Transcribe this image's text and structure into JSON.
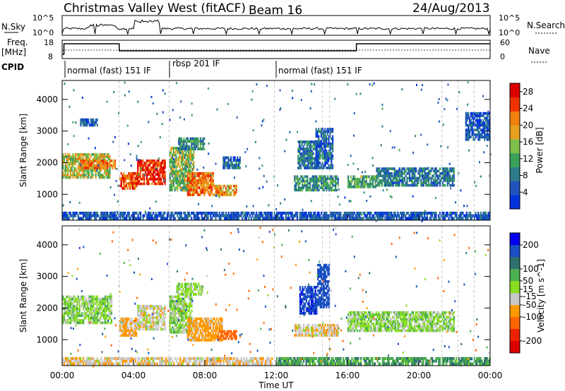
{
  "header": {
    "title": "Christmas Valley West (fitACF)",
    "beam": "Beam 16",
    "date": "24/Aug/2013"
  },
  "strips": {
    "nsky": {
      "label": "N.Sky",
      "ticks": [
        "10^5",
        "10^0"
      ],
      "right_label": "N.Search"
    },
    "freq": {
      "label": "Freq.",
      "unit": "[MHz]",
      "ticks": [
        "18",
        "8"
      ],
      "right_ticks": [
        "60",
        "0"
      ],
      "right_label": "Nave"
    },
    "cpid": {
      "label": "CPID",
      "modes": [
        "normal (fast) 151 IF",
        "rbsp 201 IF",
        "normal (fast) 151 IF"
      ]
    }
  },
  "colors": {
    "power": [
      "#0033dd",
      "#2255bb",
      "#2e7b8c",
      "#3aa05a",
      "#7ec04a",
      "#e8a020",
      "#f08010",
      "#ee3300",
      "#dd0000"
    ],
    "velocity": [
      "#0000ee",
      "#1a4fc4",
      "#2f7070",
      "#4caf50",
      "#88dd22",
      "#c8c8c8",
      "#ff9900",
      "#ff6600",
      "#ee2200",
      "#dd0000"
    ]
  },
  "chart_data": [
    {
      "type": "heatmap",
      "name": "power",
      "ylabel": "Slant Range [km]",
      "xlabel": "Time UT",
      "x_ticks": [
        "00:00",
        "04:00",
        "08:00",
        "12:00",
        "16:00",
        "20:00",
        "00:00"
      ],
      "y_ticks": [
        1000,
        2000,
        3000,
        4000
      ],
      "ylim": [
        180,
        4600
      ],
      "colorbar": {
        "label": "Power [dB]",
        "ticks": [
          4,
          8,
          12,
          16,
          20,
          24,
          28
        ],
        "range": [
          0,
          30
        ]
      },
      "regions": [
        {
          "t": [
            0.0,
            2.7
          ],
          "r": [
            1500,
            2300
          ],
          "level": 16
        },
        {
          "t": [
            1.0,
            3.0
          ],
          "r": [
            1800,
            2100
          ],
          "level": 22
        },
        {
          "t": [
            3.2,
            4.2
          ],
          "r": [
            1150,
            1700
          ],
          "level": 24
        },
        {
          "t": [
            4.2,
            5.8
          ],
          "r": [
            1300,
            2100
          ],
          "level": 26
        },
        {
          "t": [
            6.0,
            7.4
          ],
          "r": [
            1100,
            2500
          ],
          "level": 14
        },
        {
          "t": [
            7.0,
            8.5
          ],
          "r": [
            950,
            1700
          ],
          "level": 22
        },
        {
          "t": [
            8.5,
            9.8
          ],
          "r": [
            950,
            1300
          ],
          "level": 20
        },
        {
          "t": [
            6.5,
            8.0
          ],
          "r": [
            2400,
            2800
          ],
          "level": 10
        },
        {
          "t": [
            9.0,
            10.0
          ],
          "r": [
            1800,
            2200
          ],
          "level": 6
        },
        {
          "t": [
            13.2,
            14.4
          ],
          "r": [
            1800,
            2700
          ],
          "level": 8
        },
        {
          "t": [
            14.2,
            15.2
          ],
          "r": [
            1800,
            3100
          ],
          "level": 6
        },
        {
          "t": [
            13.0,
            15.5
          ],
          "r": [
            1100,
            1600
          ],
          "level": 10
        },
        {
          "t": [
            16.0,
            17.6
          ],
          "r": [
            1200,
            1600
          ],
          "level": 12
        },
        {
          "t": [
            17.6,
            22.0
          ],
          "r": [
            1250,
            1850
          ],
          "level": 8
        },
        {
          "t": [
            1.0,
            2.0
          ],
          "r": [
            3150,
            3400
          ],
          "level": 5
        },
        {
          "t": [
            22.6,
            24.0
          ],
          "r": [
            2700,
            3600
          ],
          "level": 5
        },
        {
          "t": [
            0.0,
            24.0
          ],
          "r": [
            200,
            450
          ],
          "level": 5
        }
      ]
    },
    {
      "type": "heatmap",
      "name": "velocity",
      "ylabel": "Slant Range [km]",
      "xlabel": "Time UT",
      "x_ticks": [
        "00:00",
        "04:00",
        "08:00",
        "12:00",
        "16:00",
        "20:00",
        "00:00"
      ],
      "y_ticks": [
        1000,
        2000,
        3000,
        4000
      ],
      "ylim": [
        180,
        4600
      ],
      "colorbar": {
        "label": "Velocity [m s^-1]",
        "ticks": [
          200,
          100,
          50,
          15,
          -15,
          -50,
          -100,
          -200
        ],
        "range": [
          -250,
          250
        ]
      },
      "regions": [
        {
          "t": [
            0.0,
            2.8
          ],
          "r": [
            1500,
            2400
          ],
          "value": 0
        },
        {
          "t": [
            3.2,
            4.2
          ],
          "r": [
            1100,
            1700
          ],
          "value": -60
        },
        {
          "t": [
            4.2,
            5.8
          ],
          "r": [
            1300,
            2100
          ],
          "value": -30
        },
        {
          "t": [
            6.0,
            7.3
          ],
          "r": [
            1200,
            2400
          ],
          "value": 0
        },
        {
          "t": [
            7.0,
            9.0
          ],
          "r": [
            950,
            1700
          ],
          "value": -70
        },
        {
          "t": [
            8.7,
            9.8
          ],
          "r": [
            1000,
            1300
          ],
          "value": -160
        },
        {
          "t": [
            6.4,
            7.9
          ],
          "r": [
            2400,
            2800
          ],
          "value": 0
        },
        {
          "t": [
            13.3,
            14.3
          ],
          "r": [
            1800,
            2700
          ],
          "value": 180
        },
        {
          "t": [
            14.3,
            15.0
          ],
          "r": [
            2000,
            3400
          ],
          "value": 150
        },
        {
          "t": [
            13.0,
            15.5
          ],
          "r": [
            1100,
            1500
          ],
          "value": -40
        },
        {
          "t": [
            16.0,
            22.0
          ],
          "r": [
            1250,
            1900
          ],
          "value": 0
        },
        {
          "t": [
            0.0,
            11.8
          ],
          "r": [
            200,
            450
          ],
          "value": -40
        },
        {
          "t": [
            12.0,
            24.0
          ],
          "r": [
            200,
            450
          ],
          "value": 40
        }
      ]
    }
  ]
}
